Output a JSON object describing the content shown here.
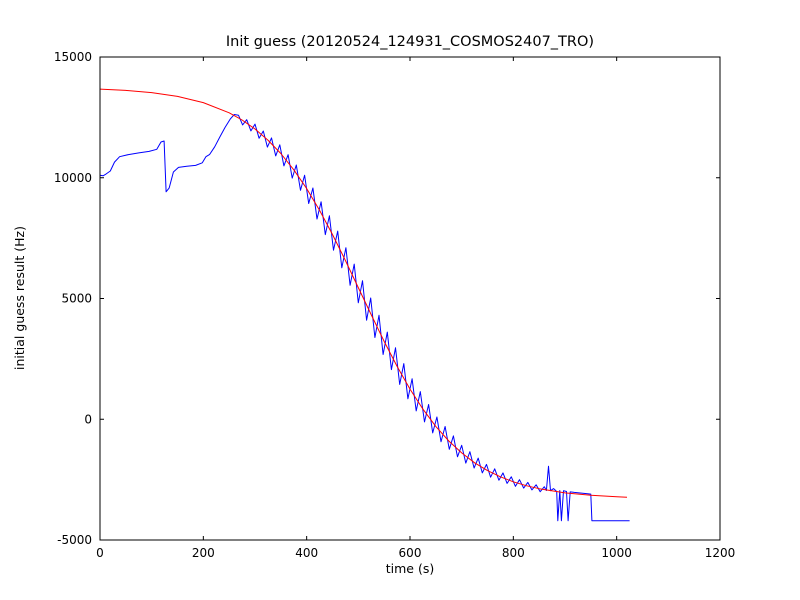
{
  "figure": {
    "background": "#ffffff",
    "frame_color": "#000000"
  },
  "chart_data": {
    "type": "line",
    "title": "Init guess (20120524_124931_COSMOS2407_TRO)",
    "xlabel": "time (s)",
    "ylabel": "initial guess result (Hz)",
    "xlim": [
      0,
      1200
    ],
    "ylim": [
      -5000,
      15000
    ],
    "xticks": [
      0,
      200,
      400,
      600,
      800,
      1000,
      1200
    ],
    "yticks": [
      -5000,
      0,
      5000,
      10000,
      15000
    ],
    "grid": false,
    "legend": "none",
    "series": [
      {
        "id": "initial-guess-data-line",
        "color": "#0000ff",
        "points": [
          [
            0,
            10100
          ],
          [
            6,
            10080
          ],
          [
            12,
            10160
          ],
          [
            20,
            10280
          ],
          [
            28,
            10650
          ],
          [
            38,
            10870
          ],
          [
            55,
            10960
          ],
          [
            75,
            11030
          ],
          [
            95,
            11090
          ],
          [
            110,
            11180
          ],
          [
            118,
            11480
          ],
          [
            124,
            11520
          ],
          [
            128,
            9420
          ],
          [
            134,
            9580
          ],
          [
            142,
            10240
          ],
          [
            152,
            10430
          ],
          [
            168,
            10480
          ],
          [
            185,
            10510
          ],
          [
            198,
            10620
          ],
          [
            205,
            10870
          ],
          [
            212,
            10960
          ],
          [
            222,
            11280
          ],
          [
            232,
            11690
          ],
          [
            242,
            12080
          ],
          [
            252,
            12430
          ],
          [
            260,
            12620
          ],
          [
            268,
            12590
          ],
          [
            276,
            12190
          ],
          [
            284,
            12405
          ],
          [
            292,
            11940
          ],
          [
            300,
            12220
          ],
          [
            308,
            11635
          ],
          [
            316,
            11935
          ],
          [
            324,
            11270
          ],
          [
            332,
            11650
          ],
          [
            340,
            10905
          ],
          [
            348,
            11365
          ],
          [
            356,
            10490
          ],
          [
            364,
            10955
          ],
          [
            372,
            9985
          ],
          [
            380,
            10530
          ],
          [
            388,
            9480
          ],
          [
            396,
            10105
          ],
          [
            404,
            8935
          ],
          [
            412,
            9575
          ],
          [
            420,
            8290
          ],
          [
            428,
            9005
          ],
          [
            436,
            7645
          ],
          [
            444,
            8425
          ],
          [
            452,
            7000
          ],
          [
            460,
            7790
          ],
          [
            468,
            6270
          ],
          [
            476,
            7105
          ],
          [
            484,
            5545
          ],
          [
            492,
            6425
          ],
          [
            500,
            4820
          ],
          [
            508,
            5735
          ],
          [
            516,
            4100
          ],
          [
            524,
            5020
          ],
          [
            532,
            3385
          ],
          [
            540,
            4305
          ],
          [
            548,
            2680
          ],
          [
            556,
            3610
          ],
          [
            564,
            2055
          ],
          [
            572,
            2960
          ],
          [
            580,
            1445
          ],
          [
            588,
            2305
          ],
          [
            596,
            845
          ],
          [
            604,
            1675
          ],
          [
            612,
            345
          ],
          [
            620,
            1145
          ],
          [
            628,
            -110
          ],
          [
            636,
            610
          ],
          [
            644,
            -565
          ],
          [
            652,
            95
          ],
          [
            660,
            -930
          ],
          [
            668,
            -300
          ],
          [
            676,
            -1245
          ],
          [
            684,
            -690
          ],
          [
            692,
            -1555
          ],
          [
            700,
            -1080
          ],
          [
            708,
            -1815
          ],
          [
            716,
            -1345
          ],
          [
            724,
            -2020
          ],
          [
            732,
            -1610
          ],
          [
            740,
            -2220
          ],
          [
            748,
            -1870
          ],
          [
            756,
            -2400
          ],
          [
            764,
            -2050
          ],
          [
            772,
            -2525
          ],
          [
            780,
            -2220
          ],
          [
            788,
            -2655
          ],
          [
            796,
            -2385
          ],
          [
            804,
            -2775
          ],
          [
            812,
            -2505
          ],
          [
            820,
            -2850
          ],
          [
            828,
            -2615
          ],
          [
            836,
            -2925
          ],
          [
            844,
            -2715
          ],
          [
            852,
            -3000
          ],
          [
            860,
            -2795
          ],
          [
            864,
            -2950
          ],
          [
            868,
            -1950
          ],
          [
            872,
            -2960
          ],
          [
            878,
            -2870
          ],
          [
            884,
            -2990
          ],
          [
            886,
            -4200
          ],
          [
            890,
            -2950
          ],
          [
            893,
            -4200
          ],
          [
            897,
            -2960
          ],
          [
            903,
            -2990
          ],
          [
            906,
            -4200
          ],
          [
            910,
            -3010
          ],
          [
            918,
            -3030
          ],
          [
            932,
            -3060
          ],
          [
            946,
            -3090
          ],
          [
            950,
            -3100
          ],
          [
            952,
            -4200
          ],
          [
            1025,
            -4200
          ]
        ]
      },
      {
        "id": "fit-curve-line",
        "color": "#ff0000",
        "points": [
          [
            0,
            13670
          ],
          [
            50,
            13615
          ],
          [
            100,
            13525
          ],
          [
            150,
            13370
          ],
          [
            200,
            13110
          ],
          [
            250,
            12690
          ],
          [
            275,
            12390
          ],
          [
            300,
            12020
          ],
          [
            325,
            11560
          ],
          [
            350,
            11005
          ],
          [
            375,
            10330
          ],
          [
            400,
            9550
          ],
          [
            425,
            8650
          ],
          [
            450,
            7650
          ],
          [
            475,
            6575
          ],
          [
            500,
            5450
          ],
          [
            525,
            4320
          ],
          [
            550,
            3220
          ],
          [
            575,
            2190
          ],
          [
            600,
            1250
          ],
          [
            625,
            420
          ],
          [
            650,
            -295
          ],
          [
            675,
            -900
          ],
          [
            700,
            -1395
          ],
          [
            725,
            -1805
          ],
          [
            750,
            -2125
          ],
          [
            775,
            -2385
          ],
          [
            800,
            -2590
          ],
          [
            825,
            -2750
          ],
          [
            850,
            -2875
          ],
          [
            900,
            -3050
          ],
          [
            950,
            -3150
          ],
          [
            1000,
            -3210
          ],
          [
            1020,
            -3230
          ]
        ]
      }
    ]
  }
}
